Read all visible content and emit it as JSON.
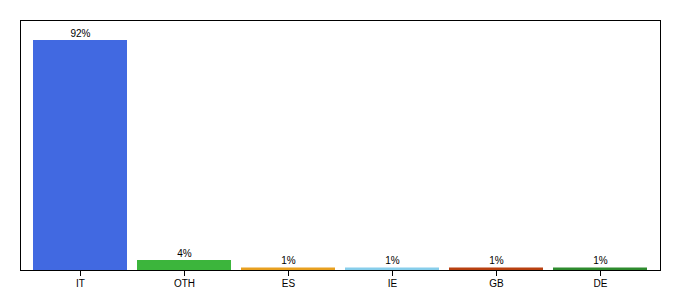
{
  "chart_data": {
    "type": "bar",
    "categories": [
      "IT",
      "OTH",
      "ES",
      "IE",
      "GB",
      "DE"
    ],
    "values": [
      92,
      4,
      1,
      1,
      1,
      1
    ],
    "value_labels": [
      "92%",
      "4%",
      "1%",
      "1%",
      "1%",
      "1%"
    ],
    "colors": [
      "#4169e1",
      "#3cb53c",
      "#e8a020",
      "#87ceeb",
      "#b84010",
      "#2e8b2e"
    ],
    "ylim": [
      0,
      100
    ],
    "data_labels": true,
    "tick_labels": "x"
  }
}
